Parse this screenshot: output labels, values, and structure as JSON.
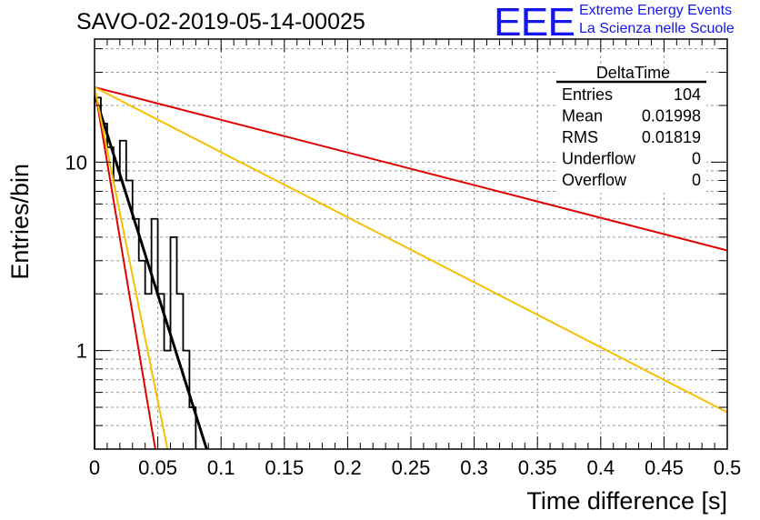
{
  "header": {
    "title": "SAVO-02-2019-05-14-00025",
    "logo_mark": "EEE",
    "logo_line1": "Extreme Energy Events",
    "logo_line2": "La Scienza nelle Scuole"
  },
  "colors": {
    "histogram": "#000000",
    "fit_black": "#000000",
    "fit_red": "#e00000",
    "fit_yellow": "#f5c000",
    "logo_blue": "#1515ee",
    "grid": "#9a9a9a"
  },
  "stats_box": {
    "title": "DeltaTime",
    "rows": [
      {
        "label": "Entries",
        "value": "104"
      },
      {
        "label": "Mean",
        "value": "0.01998"
      },
      {
        "label": "RMS",
        "value": "0.01819"
      },
      {
        "label": "Underflow",
        "value": "0"
      },
      {
        "label": "Overflow",
        "value": "0"
      }
    ]
  },
  "chart_data": {
    "type": "histogram",
    "title": "SAVO-02-2019-05-14-00025",
    "xlabel": "Time difference [s]",
    "ylabel": "Entries/bin",
    "xlim": [
      0,
      0.5
    ],
    "ylim": [
      0.3,
      45
    ],
    "y_scale": "log",
    "grid": true,
    "x_ticks": [
      "0",
      "0.05",
      "0.1",
      "0.15",
      "0.2",
      "0.25",
      "0.3",
      "0.35",
      "0.4",
      "0.45",
      "0.5"
    ],
    "y_ticks": [
      "1",
      "10"
    ],
    "bin_width": 0.005,
    "bins": [
      {
        "x0": 0.0,
        "value": 22
      },
      {
        "x0": 0.005,
        "value": 16
      },
      {
        "x0": 0.01,
        "value": 12
      },
      {
        "x0": 0.015,
        "value": 8
      },
      {
        "x0": 0.02,
        "value": 13
      },
      {
        "x0": 0.025,
        "value": 8
      },
      {
        "x0": 0.03,
        "value": 5
      },
      {
        "x0": 0.035,
        "value": 3
      },
      {
        "x0": 0.04,
        "value": 2
      },
      {
        "x0": 0.045,
        "value": 5
      },
      {
        "x0": 0.05,
        "value": 2
      },
      {
        "x0": 0.055,
        "value": 1
      },
      {
        "x0": 0.06,
        "value": 4
      },
      {
        "x0": 0.065,
        "value": 2
      },
      {
        "x0": 0.07,
        "value": 1
      },
      {
        "x0": 0.075,
        "value": 0.5
      }
    ],
    "fits": [
      {
        "color": "black",
        "type": "exponential",
        "x": [
          0.0,
          0.09
        ],
        "y": [
          23,
          0.28
        ]
      },
      {
        "color": "red",
        "type": "exponential",
        "x": [
          0.0,
          0.5
        ],
        "y": [
          25,
          3.4
        ]
      },
      {
        "color": "yellow",
        "type": "exponential",
        "x": [
          0.0,
          0.5
        ],
        "y": [
          25,
          0.47
        ]
      },
      {
        "color": "red",
        "type": "exponential",
        "x": [
          0.0,
          0.05
        ],
        "y": [
          25,
          0.25
        ]
      },
      {
        "color": "yellow",
        "type": "exponential",
        "x": [
          0.0,
          0.06
        ],
        "y": [
          25,
          0.25
        ]
      }
    ]
  }
}
